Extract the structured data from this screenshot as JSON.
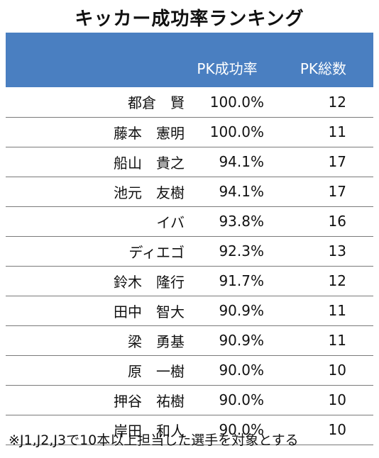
{
  "title": "キッカー成功率ランキング",
  "header": {
    "rate_label": "PK成功率",
    "total_label": "PK総数"
  },
  "rows": [
    {
      "name": "都倉　賢",
      "rate": "100.0%",
      "total": "12"
    },
    {
      "name": "藤本　憲明",
      "rate": "100.0%",
      "total": "11"
    },
    {
      "name": "船山　貴之",
      "rate": "94.1%",
      "total": "17"
    },
    {
      "name": "池元　友樹",
      "rate": "94.1%",
      "total": "17"
    },
    {
      "name": "イバ",
      "rate": "93.8%",
      "total": "16"
    },
    {
      "name": "ディエゴ",
      "rate": "92.3%",
      "total": "13"
    },
    {
      "name": "鈴木　隆行",
      "rate": "91.7%",
      "total": "12"
    },
    {
      "name": "田中　智大",
      "rate": "90.9%",
      "total": "11"
    },
    {
      "name": "梁　勇基",
      "rate": "90.9%",
      "total": "11"
    },
    {
      "name": "原　一樹",
      "rate": "90.0%",
      "total": "10"
    },
    {
      "name": "押谷　祐樹",
      "rate": "90.0%",
      "total": "10"
    },
    {
      "name": "岸田　和人",
      "rate": "90.0%",
      "total": "10"
    }
  ],
  "footnote": "※J1,J2,J3で10本以上担当した選手を対象とする",
  "colors": {
    "header_bg": "#4a7fc1",
    "header_text": "#ffffff",
    "row_divider": "#7a7a7a"
  }
}
